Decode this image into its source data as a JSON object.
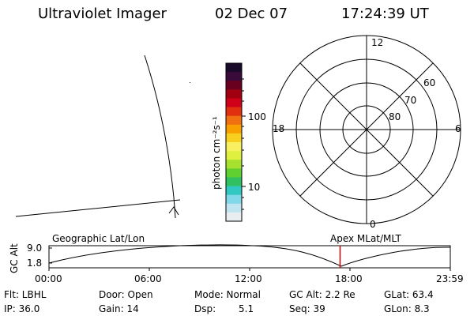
{
  "header": {
    "title": "Ultraviolet Imager",
    "date": "02 Dec 07",
    "time": "17:24:39 UT"
  },
  "colorbar": {
    "unit": "photon cm⁻²s⁻¹",
    "ticks": [
      "100",
      "10"
    ],
    "colors": [
      "#1a0a2a",
      "#3a0a3a",
      "#6a0020",
      "#a00010",
      "#d00018",
      "#e03010",
      "#f07010",
      "#f8a000",
      "#f8d020",
      "#f8f060",
      "#e0f040",
      "#a8e030",
      "#60d030",
      "#30c060",
      "#30c8c0",
      "#80d8e8",
      "#c0e4f0",
      "#e8eef0"
    ]
  },
  "polar": {
    "labels": {
      "top": "12",
      "bottom": "0",
      "left": "18",
      "right": "6"
    },
    "lat_labels": [
      "60",
      "70",
      "80"
    ]
  },
  "strip": {
    "ylabel": "GC Alt",
    "yticks": [
      "9.0",
      "1.8"
    ],
    "left_title": "Geographic Lat/Lon",
    "right_title": "Apex MLat/MLT",
    "xticks": [
      "00:00",
      "06:00",
      "12:00",
      "18:00",
      "23:59"
    ],
    "marker_time_fraction": 0.7253
  },
  "info": {
    "filter": "Flt: LBHL",
    "door": "Door: Open",
    "mode": "Mode: Normal",
    "gc_alt": "GC Alt: 2.2 Re",
    "glat": "GLat: 63.4",
    "ip": "IP: 36.0",
    "gain": "Gain: 14",
    "dsp": "Dsp:",
    "dsp_val": "5.1",
    "seq": "Seq: 39",
    "glon": "GLon: 8.3"
  }
}
